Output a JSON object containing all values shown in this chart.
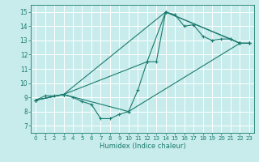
{
  "xlabel": "Humidex (Indice chaleur)",
  "background_color": "#c8ecec",
  "grid_color": "#ffffff",
  "line_color": "#1a7a6e",
  "xlim": [
    -0.5,
    23.5
  ],
  "ylim": [
    6.5,
    15.5
  ],
  "xticks": [
    0,
    1,
    2,
    3,
    4,
    5,
    6,
    7,
    8,
    9,
    10,
    11,
    12,
    13,
    14,
    15,
    16,
    17,
    18,
    19,
    20,
    21,
    22,
    23
  ],
  "yticks": [
    7,
    8,
    9,
    10,
    11,
    12,
    13,
    14,
    15
  ],
  "lines": [
    {
      "x": [
        0,
        1,
        2,
        3,
        4,
        5,
        6,
        7,
        8,
        9,
        10,
        11,
        12,
        13,
        14,
        15,
        16,
        17,
        18,
        19,
        20,
        21,
        22,
        23
      ],
      "y": [
        8.8,
        9.1,
        9.1,
        9.2,
        9.0,
        8.7,
        8.5,
        7.5,
        7.5,
        7.8,
        8.0,
        9.5,
        11.5,
        11.5,
        15.0,
        14.8,
        14.0,
        14.1,
        13.3,
        13.0,
        13.1,
        13.1,
        12.8,
        12.8
      ]
    },
    {
      "x": [
        0,
        3,
        14,
        21,
        22,
        23
      ],
      "y": [
        8.8,
        9.2,
        15.0,
        13.1,
        12.8,
        12.8
      ]
    },
    {
      "x": [
        0,
        3,
        12,
        14,
        22,
        23
      ],
      "y": [
        8.8,
        9.2,
        11.5,
        15.0,
        12.8,
        12.8
      ]
    },
    {
      "x": [
        0,
        3,
        10,
        22,
        23
      ],
      "y": [
        8.8,
        9.2,
        8.0,
        12.8,
        12.8
      ]
    }
  ]
}
